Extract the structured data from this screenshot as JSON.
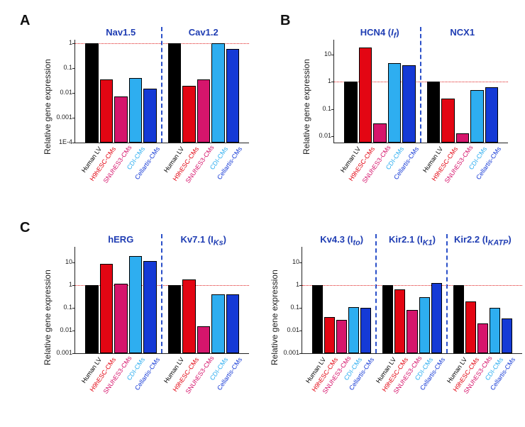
{
  "background_color": "#ffffff",
  "axis_color": "#222222",
  "divider_color": "#2b50c9",
  "ref_line_color": "#e02020",
  "panel_label_color": "#111111",
  "panel_label_fontsize": 20,
  "group_title_color": "#1f3db3",
  "group_title_fontsize": 13,
  "ylabel_text": "Relative gene expression",
  "ylabel_fontsize": 12,
  "ytick_fontsize": 9,
  "xtick_fontsize": 9,
  "xtick_rotation_deg": -55,
  "category_labels": [
    "Human LV",
    "H9hESC-CMs",
    "SNUhES3-CMs",
    "CDI-CMs",
    "Cellartis-CMs"
  ],
  "category_colors": [
    "#000000",
    "#e30613",
    "#d6156c",
    "#2eaef0",
    "#153ad6"
  ],
  "category_label_colors": [
    "#000000",
    "#e30613",
    "#d6156c",
    "#2eaef0",
    "#153ad6"
  ],
  "panels": {
    "A": {
      "label": "A",
      "y_ticks": [
        0.0001,
        0.001,
        0.01,
        0.1,
        1
      ],
      "y_tick_labels": [
        "1E-4",
        "0.001",
        "0.01",
        "0.1",
        "1"
      ],
      "range": [
        0.0001,
        1.4
      ],
      "scale": "log",
      "groups": [
        {
          "title": "Nav1.5",
          "values": [
            1,
            0.035,
            0.007,
            0.04,
            0.015
          ]
        },
        {
          "title": "Cav1.2",
          "values": [
            1,
            0.02,
            0.035,
            1.0,
            0.6
          ]
        }
      ],
      "ref_value": 1
    },
    "B": {
      "label": "B",
      "y_ticks": [
        0.01,
        0.1,
        1,
        10
      ],
      "y_tick_labels": [
        "0.01",
        "0.1",
        "1",
        "10"
      ],
      "range": [
        0.006,
        35
      ],
      "scale": "log",
      "groups": [
        {
          "title_html": "HCN4 (Iₓ)",
          "title": "HCN4 (If)",
          "values": [
            1,
            18,
            0.03,
            5,
            4
          ]
        },
        {
          "title": "NCX1",
          "values": [
            1,
            0.25,
            0.013,
            0.5,
            0.65
          ]
        }
      ],
      "ref_value": 1
    },
    "C1": {
      "label": "C",
      "y_ticks": [
        0.001,
        0.01,
        0.1,
        1,
        10
      ],
      "y_tick_labels": [
        "0.001",
        "0.01",
        "0.1",
        "1",
        "10"
      ],
      "range": [
        0.001,
        50
      ],
      "scale": "log",
      "groups": [
        {
          "title": "hERG",
          "values": [
            1,
            9,
            1.2,
            20,
            12
          ]
        },
        {
          "title_html": "Kv7.1 (I<sub>Ks</sub>)",
          "title": "Kv7.1 (IKs)",
          "values": [
            1,
            1.8,
            0.015,
            0.4,
            0.4
          ]
        }
      ],
      "ref_value": 1
    },
    "C2": {
      "label": "",
      "y_ticks": [
        0.001,
        0.01,
        0.1,
        1,
        10
      ],
      "y_tick_labels": [
        "0.001",
        "0.01",
        "0.1",
        "1",
        "10"
      ],
      "range": [
        0.001,
        50
      ],
      "scale": "log",
      "groups": [
        {
          "title_html": "Kv4.3 (I<sub>to</sub>)",
          "title": "Kv4.3 (Ito)",
          "values": [
            1,
            0.04,
            0.03,
            0.11,
            0.1
          ]
        },
        {
          "title_html": "Kir2.1 (I<sub>K1</sub>)",
          "title": "Kir2.1 (IK1)",
          "values": [
            1,
            0.65,
            0.08,
            0.3,
            1.3
          ]
        },
        {
          "title_html": "Kir2.2 (I<sub>KATP</sub>)",
          "title": "Kir2.2 (IKATP)",
          "values": [
            1,
            0.2,
            0.02,
            0.1,
            0.035
          ]
        }
      ],
      "ref_value": 1
    }
  }
}
